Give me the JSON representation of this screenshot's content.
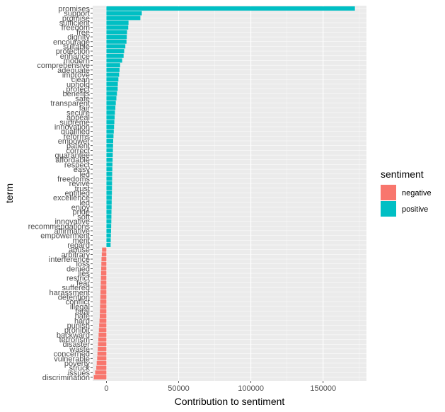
{
  "chart_data": {
    "type": "bar",
    "orientation": "horizontal",
    "xlabel": "Contribution to sentiment",
    "ylabel": "term",
    "xlim": [
      -9500,
      180000
    ],
    "x_ticks": [
      0,
      50000,
      100000,
      150000
    ],
    "x_tick_labels": [
      "0",
      "50000",
      "100000",
      "150000"
    ],
    "grid": true,
    "legend": {
      "title": "sentiment",
      "position": "right",
      "entries": [
        {
          "name": "negative",
          "color": "#F8766D"
        },
        {
          "name": "positive",
          "color": "#00BFC4"
        }
      ]
    },
    "colors": {
      "negative": "#F8766D",
      "positive": "#00BFC4",
      "panel_bg": "#EBEBEB",
      "grid": "#FFFFFF"
    },
    "bars": [
      {
        "term": "promises",
        "value": 172000,
        "sentiment": "positive"
      },
      {
        "term": "support",
        "value": 24500,
        "sentiment": "positive"
      },
      {
        "term": "promise",
        "value": 23500,
        "sentiment": "positive"
      },
      {
        "term": "sufficient",
        "value": 15300,
        "sentiment": "positive"
      },
      {
        "term": "freedom",
        "value": 15100,
        "sentiment": "positive"
      },
      {
        "term": "free",
        "value": 14300,
        "sentiment": "positive"
      },
      {
        "term": "dignity",
        "value": 14100,
        "sentiment": "positive"
      },
      {
        "term": "encourage",
        "value": 13900,
        "sentiment": "positive"
      },
      {
        "term": "suitable",
        "value": 13100,
        "sentiment": "positive"
      },
      {
        "term": "protection",
        "value": 12300,
        "sentiment": "positive"
      },
      {
        "term": "enhance",
        "value": 11900,
        "sentiment": "positive"
      },
      {
        "term": "modern",
        "value": 10900,
        "sentiment": "positive"
      },
      {
        "term": "comprehensive",
        "value": 9500,
        "sentiment": "positive"
      },
      {
        "term": "adequate",
        "value": 9100,
        "sentiment": "positive"
      },
      {
        "term": "improve",
        "value": 8800,
        "sentiment": "positive"
      },
      {
        "term": "clean",
        "value": 8300,
        "sentiment": "positive"
      },
      {
        "term": "uphold",
        "value": 7900,
        "sentiment": "positive"
      },
      {
        "term": "protect",
        "value": 7800,
        "sentiment": "positive"
      },
      {
        "term": "benefits",
        "value": 7300,
        "sentiment": "positive"
      },
      {
        "term": "safe",
        "value": 6900,
        "sentiment": "positive"
      },
      {
        "term": "transparent",
        "value": 6500,
        "sentiment": "positive"
      },
      {
        "term": "fair",
        "value": 6200,
        "sentiment": "positive"
      },
      {
        "term": "secure",
        "value": 5900,
        "sentiment": "positive"
      },
      {
        "term": "appeal",
        "value": 5700,
        "sentiment": "positive"
      },
      {
        "term": "supreme",
        "value": 5500,
        "sentiment": "positive"
      },
      {
        "term": "innovation",
        "value": 5300,
        "sentiment": "positive"
      },
      {
        "term": "qualified",
        "value": 5100,
        "sentiment": "positive"
      },
      {
        "term": "reforms",
        "value": 4900,
        "sentiment": "positive"
      },
      {
        "term": "empower",
        "value": 4700,
        "sentiment": "positive"
      },
      {
        "term": "patient",
        "value": 4600,
        "sentiment": "positive"
      },
      {
        "term": "correct",
        "value": 4500,
        "sentiment": "positive"
      },
      {
        "term": "guarantee",
        "value": 4400,
        "sentiment": "positive"
      },
      {
        "term": "affordable",
        "value": 4300,
        "sentiment": "positive"
      },
      {
        "term": "respect",
        "value": 4200,
        "sentiment": "positive"
      },
      {
        "term": "easy",
        "value": 4100,
        "sentiment": "positive"
      },
      {
        "term": "led",
        "value": 4000,
        "sentiment": "positive"
      },
      {
        "term": "freedoms",
        "value": 3950,
        "sentiment": "positive"
      },
      {
        "term": "revive",
        "value": 3900,
        "sentiment": "positive"
      },
      {
        "term": "trust",
        "value": 3850,
        "sentiment": "positive"
      },
      {
        "term": "entitled",
        "value": 3800,
        "sentiment": "positive"
      },
      {
        "term": "excellence",
        "value": 3700,
        "sentiment": "positive"
      },
      {
        "term": "led",
        "value": 3650,
        "sentiment": "positive"
      },
      {
        "term": "enjoy",
        "value": 3600,
        "sentiment": "positive"
      },
      {
        "term": "pride",
        "value": 3500,
        "sentiment": "positive"
      },
      {
        "term": "soft",
        "value": 3450,
        "sentiment": "positive"
      },
      {
        "term": "innovative",
        "value": 3400,
        "sentiment": "positive"
      },
      {
        "term": "recommendations",
        "value": 3300,
        "sentiment": "positive"
      },
      {
        "term": "affirmative",
        "value": 3200,
        "sentiment": "positive"
      },
      {
        "term": "empowerment",
        "value": 3100,
        "sentiment": "positive"
      },
      {
        "term": "merit",
        "value": 3000,
        "sentiment": "positive"
      },
      {
        "term": "regard",
        "value": 2900,
        "sentiment": "positive"
      },
      {
        "term": "abuse",
        "value": -3000,
        "sentiment": "negative"
      },
      {
        "term": "arbitrary",
        "value": -3200,
        "sentiment": "negative"
      },
      {
        "term": "interference",
        "value": -3400,
        "sentiment": "negative"
      },
      {
        "term": "loss",
        "value": -3500,
        "sentiment": "negative"
      },
      {
        "term": "denied",
        "value": -3600,
        "sentiment": "negative"
      },
      {
        "term": "lies",
        "value": -3700,
        "sentiment": "negative"
      },
      {
        "term": "restrict",
        "value": -3800,
        "sentiment": "negative"
      },
      {
        "term": "fear",
        "value": -3900,
        "sentiment": "negative"
      },
      {
        "term": "suffered",
        "value": -4000,
        "sentiment": "negative"
      },
      {
        "term": "harassment",
        "value": -4100,
        "sentiment": "negative"
      },
      {
        "term": "detention",
        "value": -4200,
        "sentiment": "negative"
      },
      {
        "term": "conflict",
        "value": -4300,
        "sentiment": "negative"
      },
      {
        "term": "illegal",
        "value": -4400,
        "sentiment": "negative"
      },
      {
        "term": "fatal",
        "value": -4500,
        "sentiment": "negative"
      },
      {
        "term": "hate",
        "value": -4600,
        "sentiment": "negative"
      },
      {
        "term": "hard",
        "value": -4800,
        "sentiment": "negative"
      },
      {
        "term": "punish",
        "value": -5000,
        "sentiment": "negative"
      },
      {
        "term": "prohibit",
        "value": -5200,
        "sentiment": "negative"
      },
      {
        "term": "backward",
        "value": -5400,
        "sentiment": "negative"
      },
      {
        "term": "terrorism",
        "value": -5600,
        "sentiment": "negative"
      },
      {
        "term": "disaster",
        "value": -5800,
        "sentiment": "negative"
      },
      {
        "term": "waste",
        "value": -6000,
        "sentiment": "negative"
      },
      {
        "term": "concerned",
        "value": -6200,
        "sentiment": "negative"
      },
      {
        "term": "vulnerable",
        "value": -6400,
        "sentiment": "negative"
      },
      {
        "term": "poverty",
        "value": -6700,
        "sentiment": "negative"
      },
      {
        "term": "struck",
        "value": -7000,
        "sentiment": "negative"
      },
      {
        "term": "issues",
        "value": -7800,
        "sentiment": "negative"
      },
      {
        "term": "discrimination",
        "value": -8700,
        "sentiment": "negative"
      }
    ]
  }
}
